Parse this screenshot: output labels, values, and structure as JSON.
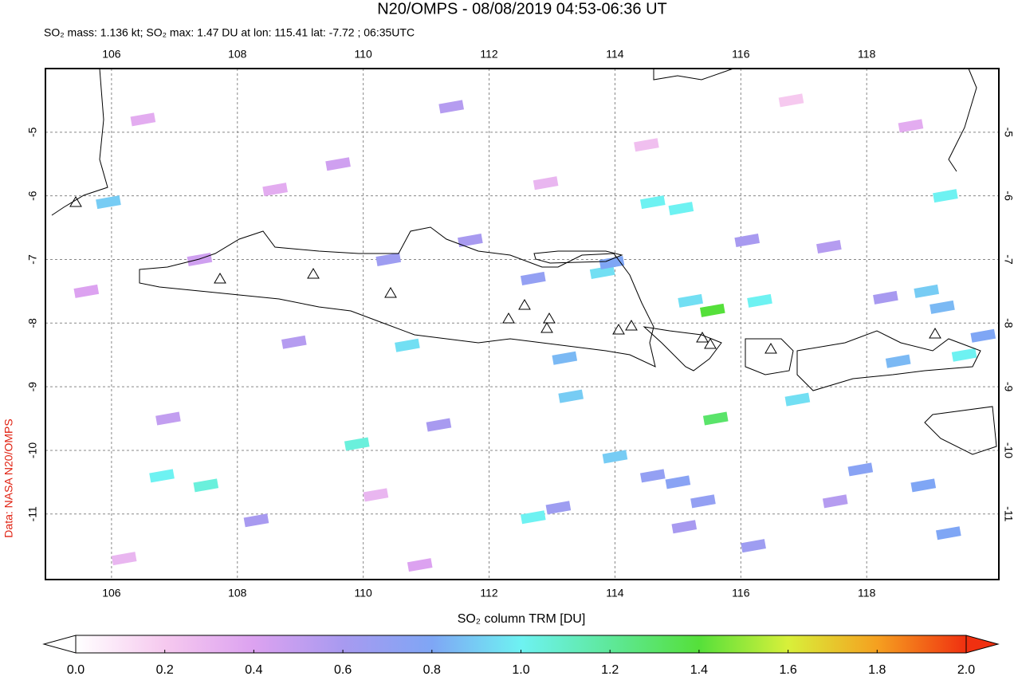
{
  "title": "N20/OMPS - 08/08/2019 04:53-06:36 UT",
  "subtitle": "SO₂ mass: 1.136 kt; SO₂ max: 1.47 DU at lon: 115.41 lat: -7.72 ; 06:35UTC",
  "credit": "Data: NASA N20/OMPS",
  "chart_data": {
    "type": "map",
    "xlim": [
      104.95,
      120.1
    ],
    "ylim": [
      -12.03,
      -4.0
    ],
    "xticks": [
      106,
      108,
      110,
      112,
      114,
      116,
      118
    ],
    "yticks": [
      -5,
      -6,
      -7,
      -8,
      -9,
      -10,
      -11
    ],
    "grid": true,
    "pixels": {
      "lon": [
        115.55,
        115.6,
        114.6,
        115.05,
        115.2,
        116.3,
        116.9,
        113.8,
        113.95,
        113.2,
        113.3,
        114.0,
        112.7,
        110.7,
        109.9,
        107.5,
        106.8,
        105.95,
        119.25,
        118.95,
        119.2,
        118.5,
        119.55,
        119.85,
        118.9,
        119.3,
        117.9,
        115.0,
        115.4,
        114.6,
        116.2,
        115.1,
        113.1,
        111.2,
        110.4,
        112.7,
        111.7,
        108.3,
        106.9,
        108.9,
        107.4,
        105.6,
        109.6,
        111.4,
        116.1,
        117.4,
        118.3,
        117.5,
        110.9,
        106.5,
        108.6,
        112.9,
        110.2,
        114.5,
        106.2,
        116.8,
        118.7
      ],
      "lat": [
        -7.8,
        -9.5,
        -6.1,
        -6.2,
        -7.65,
        -7.65,
        -9.2,
        -7.2,
        -7.05,
        -8.55,
        -9.15,
        -10.1,
        -11.05,
        -8.35,
        -9.9,
        -10.55,
        -10.4,
        -6.1,
        -6.0,
        -7.5,
        -7.75,
        -8.6,
        -8.5,
        -8.2,
        -10.55,
        -11.3,
        -10.3,
        -10.5,
        -10.8,
        -10.4,
        -11.5,
        -11.2,
        -10.9,
        -9.6,
        -7.0,
        -7.3,
        -6.7,
        -11.1,
        -9.5,
        -8.3,
        -7.0,
        -7.5,
        -5.5,
        -4.6,
        -6.7,
        -6.8,
        -7.6,
        -10.8,
        -11.8,
        -4.8,
        -5.9,
        -5.8,
        -10.7,
        -5.2,
        -11.7,
        -4.5,
        -4.9
      ],
      "values": [
        1.4,
        1.3,
        1.0,
        1.0,
        0.95,
        1.0,
        0.95,
        0.95,
        0.8,
        0.85,
        0.9,
        0.9,
        1.0,
        0.95,
        1.05,
        1.05,
        1.0,
        0.9,
        1.0,
        0.9,
        0.85,
        0.85,
        1.0,
        0.8,
        0.8,
        0.8,
        0.75,
        0.75,
        0.7,
        0.7,
        0.65,
        0.6,
        0.65,
        0.6,
        0.65,
        0.7,
        0.6,
        0.6,
        0.5,
        0.55,
        0.45,
        0.4,
        0.45,
        0.55,
        0.6,
        0.55,
        0.6,
        0.55,
        0.4,
        0.35,
        0.35,
        0.3,
        0.3,
        0.25,
        0.3,
        0.2,
        0.35
      ]
    },
    "colorbar": {
      "label": "SO₂ column TRM [DU]",
      "lim": [
        0,
        2
      ],
      "ticks": [
        {
          "value": 0,
          "label": "0.0"
        },
        {
          "value": 0.2,
          "label": "0.2"
        },
        {
          "value": 0.4,
          "label": "0.4"
        },
        {
          "value": 0.6,
          "label": "0.6"
        },
        {
          "value": 0.8,
          "label": "0.8"
        },
        {
          "value": 1,
          "label": "1.0"
        },
        {
          "value": 1.2,
          "label": "1.2"
        },
        {
          "value": 1.4,
          "label": "1.4"
        },
        {
          "value": 1.6,
          "label": "1.6"
        },
        {
          "value": 1.8,
          "label": "1.8"
        },
        {
          "value": 2,
          "label": "2.0"
        }
      ],
      "colors": [
        "#ffffff",
        "#f6c9ef",
        "#dca2f0",
        "#a89af0",
        "#7fa6f5",
        "#6ef2f2",
        "#5ee89a",
        "#55e03a",
        "#d8f03a",
        "#f5a020",
        "#f03010"
      ]
    }
  }
}
